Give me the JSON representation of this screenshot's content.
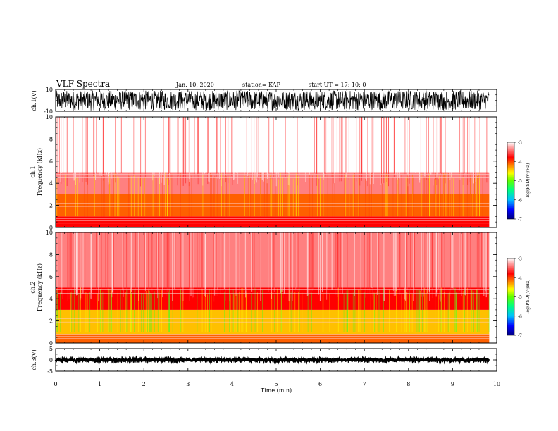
{
  "header": {
    "title": "VLF Spectra",
    "date": "Jan. 10, 2020",
    "station": "station= KAP",
    "start": "start  UT =   17: 10: 0"
  },
  "colors": {
    "spectrum_scale": [
      "#000080",
      "#0000ff",
      "#00c0ff",
      "#00ff80",
      "#40ff00",
      "#c0ff00",
      "#ffff00",
      "#ffc000",
      "#ff6000",
      "#ff0000",
      "#ff8080",
      "#ffffff"
    ],
    "trace": "#000000"
  },
  "chart_data": [
    {
      "type": "line",
      "name": "ch1-waveform",
      "ylabel": "ch.1(V)",
      "ylim": [
        -10,
        10
      ],
      "yticks": [
        "10",
        "-10"
      ],
      "xlim": [
        0,
        10
      ],
      "data_end_min": 9.83,
      "amplitude_range_V": [
        -9,
        9
      ]
    },
    {
      "type": "heatmap",
      "name": "ch1-spectrogram",
      "ylabel_top": "ch.1",
      "ylabel": "Frequency (kHz)",
      "ylim": [
        0,
        10
      ],
      "yticks": [
        "0",
        "2",
        "4",
        "6",
        "8",
        "10"
      ],
      "xlim": [
        0,
        10
      ],
      "data_end_min": 9.83,
      "colorbar": {
        "label": "log(PSD)(V²/Hz)",
        "ticks": [
          "-3",
          "-4",
          "-5",
          "-6",
          "-7"
        ],
        "range": [
          -7,
          -3
        ]
      },
      "bands_kHz_logPSD": [
        [
          0,
          1,
          -3.8
        ],
        [
          1,
          3,
          -4.0
        ],
        [
          3,
          5,
          -3.5
        ],
        [
          5,
          10,
          -3.1
        ]
      ]
    },
    {
      "type": "heatmap",
      "name": "ch2-spectrogram",
      "ylabel_top": "ch.2",
      "ylabel": "Frequency (kHz)",
      "ylim": [
        0,
        10
      ],
      "yticks": [
        "0",
        "2",
        "4",
        "6",
        "8",
        "10"
      ],
      "xlim": [
        0,
        10
      ],
      "data_end_min": 9.83,
      "colorbar": {
        "label": "log(PSD)(V²/Hz)",
        "ticks": [
          "-3",
          "-4",
          "-5",
          "-6",
          "-7"
        ],
        "range": [
          -7,
          -3
        ]
      },
      "bands_kHz_logPSD": [
        [
          0,
          0.8,
          -4.0
        ],
        [
          0.8,
          3,
          -4.6
        ],
        [
          3,
          5,
          -3.6
        ],
        [
          5,
          10,
          -3.2
        ]
      ]
    },
    {
      "type": "line",
      "name": "ch3-waveform",
      "ylabel": "ch.3(V)",
      "ylim": [
        -5,
        5
      ],
      "yticks": [
        "5",
        "0",
        "-5"
      ],
      "xlim": [
        0,
        10
      ],
      "data_end_min": 9.83,
      "amplitude_range_V": [
        -0.6,
        0.6
      ],
      "xlabel": "Time (min)",
      "xticks": [
        "0",
        "1",
        "2",
        "3",
        "4",
        "5",
        "6",
        "7",
        "8",
        "9",
        "10"
      ]
    }
  ]
}
